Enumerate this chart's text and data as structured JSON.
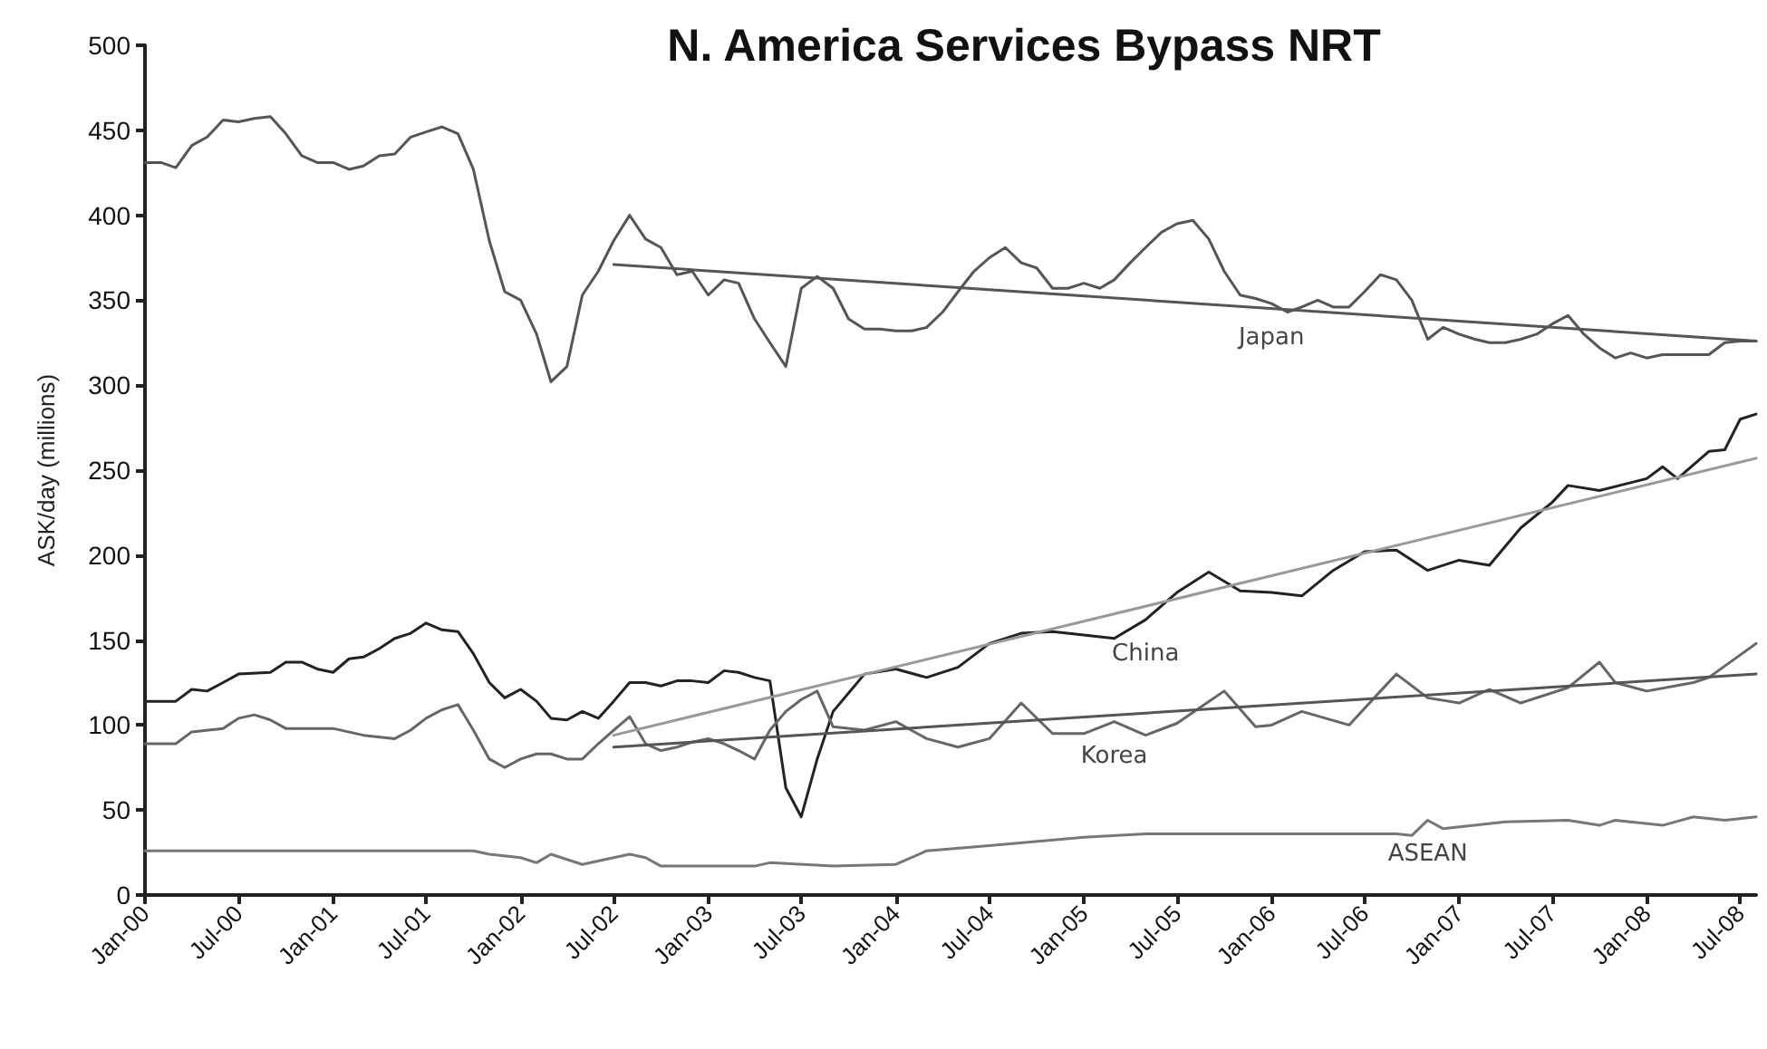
{
  "chart_data": {
    "type": "line",
    "title": "N. America Services Bypass NRT",
    "ylabel": "ASK/day (millions)",
    "xlim": [
      "2000-01",
      "2008-08"
    ],
    "ylim": [
      0,
      500
    ],
    "yticks": [
      0,
      50,
      100,
      150,
      200,
      250,
      300,
      350,
      400,
      450,
      500
    ],
    "xticks": [
      {
        "value": "2000-01",
        "label": "Jan-00"
      },
      {
        "value": "2000-07",
        "label": "Jul-00"
      },
      {
        "value": "2001-01",
        "label": "Jan-01"
      },
      {
        "value": "2001-07",
        "label": "Jul-01"
      },
      {
        "value": "2002-01",
        "label": "Jan-02"
      },
      {
        "value": "2002-07",
        "label": "Jul-02"
      },
      {
        "value": "2003-01",
        "label": "Jan-03"
      },
      {
        "value": "2003-07",
        "label": "Jul-03"
      },
      {
        "value": "2004-01",
        "label": "Jan-04"
      },
      {
        "value": "2004-07",
        "label": "Jul-04"
      },
      {
        "value": "2005-01",
        "label": "Jan-05"
      },
      {
        "value": "2005-07",
        "label": "Jul-05"
      },
      {
        "value": "2006-01",
        "label": "Jan-06"
      },
      {
        "value": "2006-07",
        "label": "Jul-06"
      },
      {
        "value": "2007-01",
        "label": "Jan-07"
      },
      {
        "value": "2007-07",
        "label": "Jul-07"
      },
      {
        "value": "2008-01",
        "label": "Jan-08"
      },
      {
        "value": "2008-07",
        "label": "Jul-08"
      }
    ],
    "grid": false,
    "marker": "none",
    "line_style": "solid",
    "series": [
      {
        "name": "Japan",
        "color": "#555555",
        "x": [
          "2000-01",
          "2000-02",
          "2000-03",
          "2000-04",
          "2000-05",
          "2000-06",
          "2000-07",
          "2000-08",
          "2000-09",
          "2000-10",
          "2000-11",
          "2000-12",
          "2001-01",
          "2001-02",
          "2001-03",
          "2001-04",
          "2001-05",
          "2001-06",
          "2001-07",
          "2001-08",
          "2001-09",
          "2001-10",
          "2001-11",
          "2001-12",
          "2002-01",
          "2002-02",
          "2002-03",
          "2002-04",
          "2002-05",
          "2002-06",
          "2002-07",
          "2002-08",
          "2002-09",
          "2002-10",
          "2002-11",
          "2002-12",
          "2003-01",
          "2003-02",
          "2003-03",
          "2003-04",
          "2003-05",
          "2003-06",
          "2003-07",
          "2003-08",
          "2003-09",
          "2003-10",
          "2003-11",
          "2003-12",
          "2004-01",
          "2004-02",
          "2004-03",
          "2004-04",
          "2004-05",
          "2004-06",
          "2004-07",
          "2004-08",
          "2004-09",
          "2004-10",
          "2004-11",
          "2004-12",
          "2005-01",
          "2005-02",
          "2005-03",
          "2005-04",
          "2005-05",
          "2005-06",
          "2005-07",
          "2005-08",
          "2005-09",
          "2005-10",
          "2005-11",
          "2005-12",
          "2006-01",
          "2006-02",
          "2006-03",
          "2006-04",
          "2006-05",
          "2006-06",
          "2006-07",
          "2006-08",
          "2006-09",
          "2006-10",
          "2006-11",
          "2006-12",
          "2007-01",
          "2007-02",
          "2007-03",
          "2007-04",
          "2007-05",
          "2007-06",
          "2007-07",
          "2007-08",
          "2007-09",
          "2007-10",
          "2007-11",
          "2007-12",
          "2008-01",
          "2008-02",
          "2008-03",
          "2008-04",
          "2008-05",
          "2008-06",
          "2008-07",
          "2008-08"
        ],
        "values": [
          431,
          431,
          428,
          441,
          446,
          456,
          455,
          457,
          458,
          448,
          435,
          431,
          431,
          427,
          429,
          435,
          436,
          446,
          449,
          452,
          448,
          427,
          385,
          355,
          350,
          330,
          302,
          311,
          353,
          367,
          385,
          400,
          386,
          381,
          365,
          367,
          353,
          362,
          360,
          339,
          325,
          311,
          357,
          364,
          357,
          339,
          333,
          333,
          332,
          332,
          334,
          343,
          355,
          367,
          375,
          381,
          372,
          369,
          357,
          357,
          360,
          357,
          362,
          372,
          381,
          390,
          395,
          397,
          386,
          367,
          353,
          351,
          348,
          343,
          346,
          350,
          346,
          346,
          355,
          365,
          362,
          350,
          327,
          334,
          330,
          327,
          325,
          325,
          327,
          330,
          336,
          341,
          330,
          322,
          316,
          319,
          316,
          318,
          318,
          318,
          318,
          325,
          326,
          326
        ]
      },
      {
        "name": "China",
        "color": "#222222",
        "x": [
          "2000-01",
          "2000-03",
          "2000-04",
          "2000-05",
          "2000-06",
          "2000-07",
          "2000-09",
          "2000-10",
          "2000-11",
          "2000-12",
          "2001-01",
          "2001-02",
          "2001-03",
          "2001-04",
          "2001-05",
          "2001-06",
          "2001-07",
          "2001-08",
          "2001-09",
          "2001-10",
          "2001-11",
          "2001-12",
          "2002-01",
          "2002-02",
          "2002-03",
          "2002-04",
          "2002-05",
          "2002-06",
          "2002-07",
          "2002-08",
          "2002-09",
          "2002-10",
          "2002-11",
          "2002-12",
          "2003-01",
          "2003-02",
          "2003-03",
          "2003-04",
          "2003-05",
          "2003-06",
          "2003-07",
          "2003-08",
          "2003-09",
          "2003-11",
          "2004-01",
          "2004-03",
          "2004-05",
          "2004-07",
          "2004-09",
          "2004-11",
          "2005-01",
          "2005-03",
          "2005-05",
          "2005-07",
          "2005-09",
          "2005-11",
          "2006-01",
          "2006-03",
          "2006-05",
          "2006-07",
          "2006-09",
          "2006-11",
          "2007-01",
          "2007-03",
          "2007-05",
          "2007-07",
          "2007-08",
          "2007-10",
          "2008-01",
          "2008-02",
          "2008-03",
          "2008-05",
          "2008-06",
          "2008-07",
          "2008-08"
        ],
        "values": [
          114,
          114,
          121,
          120,
          125,
          130,
          131,
          137,
          137,
          133,
          131,
          139,
          140,
          145,
          151,
          154,
          160,
          156,
          155,
          142,
          125,
          116,
          121,
          114,
          104,
          103,
          108,
          104,
          114,
          125,
          125,
          123,
          126,
          126,
          125,
          132,
          131,
          128,
          126,
          63,
          46,
          80,
          108,
          130,
          133,
          128,
          134,
          148,
          154,
          155,
          153,
          151,
          162,
          178,
          190,
          179,
          178,
          176,
          191,
          202,
          203,
          191,
          197,
          194,
          216,
          231,
          241,
          238,
          245,
          252,
          245,
          261,
          262,
          280,
          283
        ]
      },
      {
        "name": "Korea",
        "color": "#666666",
        "x": [
          "2000-01",
          "2000-03",
          "2000-04",
          "2000-06",
          "2000-07",
          "2000-08",
          "2000-09",
          "2000-10",
          "2001-01",
          "2001-03",
          "2001-05",
          "2001-06",
          "2001-07",
          "2001-08",
          "2001-09",
          "2001-10",
          "2001-11",
          "2001-12",
          "2002-01",
          "2002-02",
          "2002-03",
          "2002-04",
          "2002-05",
          "2002-06",
          "2002-07",
          "2002-08",
          "2002-09",
          "2002-10",
          "2002-11",
          "2002-12",
          "2003-01",
          "2003-02",
          "2003-03",
          "2003-04",
          "2003-05",
          "2003-06",
          "2003-07",
          "2003-08",
          "2003-09",
          "2003-11",
          "2004-01",
          "2004-03",
          "2004-05",
          "2004-07",
          "2004-09",
          "2004-11",
          "2005-01",
          "2005-03",
          "2005-05",
          "2005-07",
          "2005-10",
          "2005-12",
          "2006-01",
          "2006-03",
          "2006-06",
          "2006-08",
          "2006-09",
          "2006-11",
          "2007-01",
          "2007-03",
          "2007-05",
          "2007-08",
          "2007-10",
          "2007-11",
          "2008-01",
          "2008-04",
          "2008-05",
          "2008-08"
        ],
        "values": [
          89,
          89,
          96,
          98,
          104,
          106,
          103,
          98,
          98,
          94,
          92,
          97,
          104,
          109,
          112,
          97,
          80,
          75,
          80,
          83,
          83,
          80,
          80,
          89,
          97,
          105,
          89,
          85,
          87,
          90,
          92,
          89,
          85,
          80,
          97,
          108,
          115,
          120,
          99,
          97,
          102,
          92,
          87,
          92,
          113,
          95,
          95,
          102,
          94,
          101,
          120,
          99,
          100,
          108,
          100,
          120,
          130,
          116,
          113,
          121,
          113,
          122,
          137,
          125,
          120,
          125,
          128,
          148
        ]
      },
      {
        "name": "ASEAN",
        "color": "#777777",
        "x": [
          "2000-01",
          "2001-10",
          "2001-11",
          "2002-01",
          "2002-02",
          "2002-03",
          "2002-05",
          "2002-07",
          "2002-08",
          "2002-09",
          "2002-10",
          "2003-04",
          "2003-05",
          "2003-09",
          "2004-01",
          "2004-03",
          "2004-07",
          "2005-01",
          "2005-05",
          "2006-01",
          "2006-09",
          "2006-10",
          "2006-11",
          "2006-12",
          "2007-04",
          "2007-08",
          "2007-10",
          "2007-11",
          "2008-02",
          "2008-04",
          "2008-06",
          "2008-08"
        ],
        "values": [
          26,
          26,
          24,
          22,
          19,
          24,
          18,
          22,
          24,
          22,
          17,
          17,
          19,
          17,
          18,
          26,
          29,
          34,
          36,
          36,
          36,
          35,
          44,
          39,
          43,
          44,
          41,
          44,
          41,
          46,
          44,
          46
        ]
      },
      {
        "color": "#555555",
        "x": [
          "2002-07",
          "2008-08"
        ],
        "values": [
          371,
          326
        ]
      },
      {
        "color": "#999999",
        "x": [
          "2002-07",
          "2008-08"
        ],
        "values": [
          94,
          257
        ]
      },
      {
        "color": "#555555",
        "x": [
          "2002-07",
          "2008-08"
        ],
        "values": [
          87,
          130
        ]
      }
    ]
  }
}
